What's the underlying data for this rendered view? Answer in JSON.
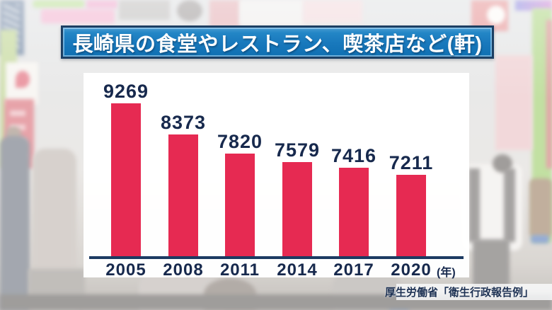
{
  "chart_data": {
    "type": "bar",
    "title": "長崎県の食堂やレストラン、喫茶店など(軒)",
    "unit_label": "(年)",
    "categories": [
      "2005",
      "2008",
      "2011",
      "2014",
      "2017",
      "2020"
    ],
    "values": [
      9269,
      8373,
      7820,
      7579,
      7416,
      7211
    ],
    "xlabel": "年",
    "ylabel": "軒",
    "ylim": [
      4850,
      9600
    ],
    "grid": false,
    "legend": false,
    "bar_color": "#e62a52",
    "label_color": "#17294d",
    "axis_color": "#1c3a62",
    "banner_color": "#1878bc",
    "source": "厚生労働省「衛生行政報告例」"
  }
}
